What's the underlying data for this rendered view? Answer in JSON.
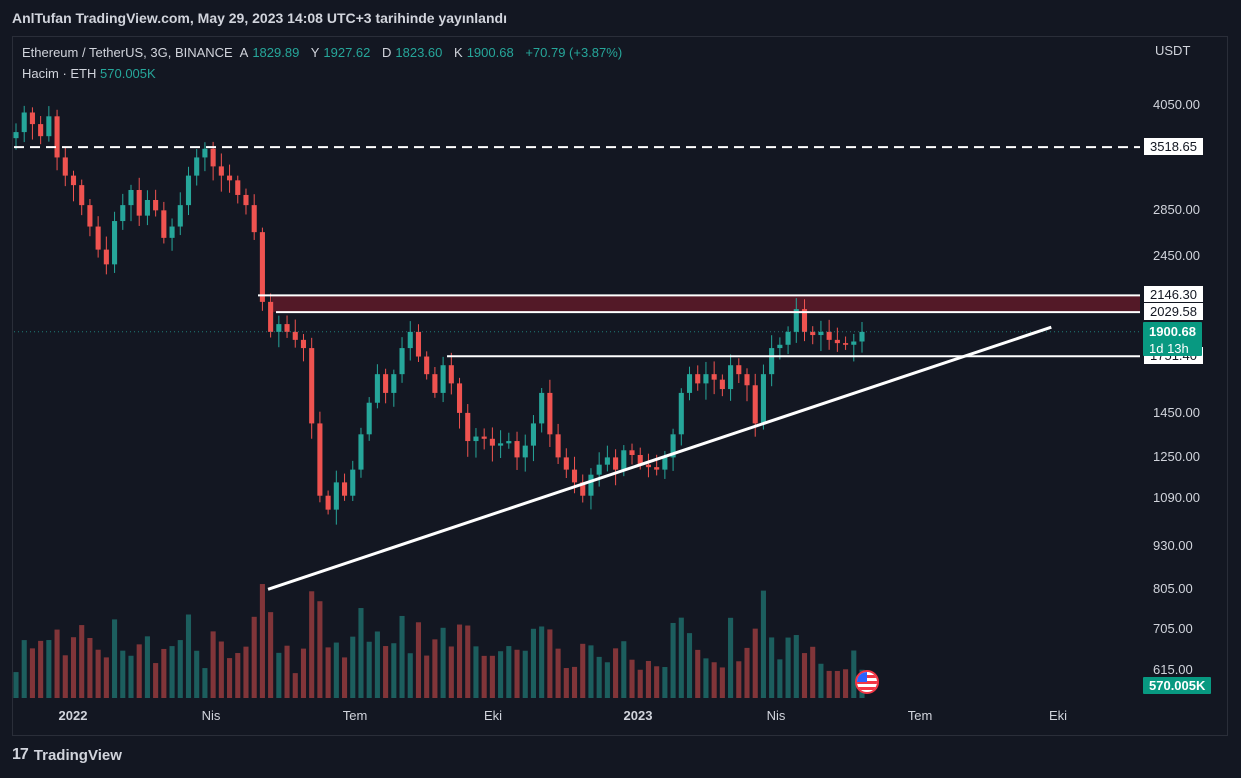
{
  "header": {
    "text": "AnlTufan TradingView.com, May 29, 2023 14:08 UTC+3 tarihinde yayınlandı"
  },
  "legend": {
    "symbol": "Ethereum / TetherUS, 3G, BINANCE",
    "open_label": "A",
    "open": "1829.89",
    "high_label": "Y",
    "high": "1927.62",
    "low_label": "D",
    "low": "1823.60",
    "close_label": "K",
    "close": "1900.68",
    "change": "+70.79 (+3.87%)",
    "volume_label": "Hacim · ETH",
    "volume": "570.005K"
  },
  "footer": {
    "brand": "TradingView",
    "logo": "17"
  },
  "colors": {
    "up": "#26a69a",
    "down": "#ef5350",
    "background": "#131722",
    "zone": "#5b1a28"
  },
  "chart_data": {
    "type": "candlestick",
    "y_axis": {
      "unit": "USDT",
      "scale": "log",
      "ticks": [
        "4050.00",
        "2850.00",
        "2450.00",
        "1450.00",
        "1250.00",
        "1090.00",
        "930.00",
        "805.00",
        "705.00",
        "615.00"
      ]
    },
    "x_axis": {
      "ticks": [
        "2022",
        "Nis",
        "Tem",
        "Eki",
        "2023",
        "Nis",
        "Tem",
        "Eki"
      ]
    },
    "price_lines": [
      {
        "value": "3518.65",
        "style": "dashed"
      },
      {
        "value": "2146.30",
        "style": "solid"
      },
      {
        "value": "2029.58",
        "style": "solid"
      },
      {
        "value": "1751.40",
        "style": "solid"
      }
    ],
    "current_price": {
      "value": "1900.68",
      "countdown": "1d 13h"
    },
    "current_volume": "570.005K",
    "resistance_zone": [
      2029.58,
      2146.3
    ],
    "trendline": {
      "from": {
        "date": "2022-05-07",
        "price": 805
      },
      "to": {
        "date": "2023-09-25",
        "price": 1930
      }
    },
    "closes": [
      3700,
      3950,
      3800,
      3650,
      3900,
      3400,
      3200,
      3100,
      2900,
      2700,
      2500,
      2380,
      2750,
      2900,
      3050,
      2800,
      2950,
      2850,
      2600,
      2700,
      2900,
      3200,
      3400,
      3500,
      3300,
      3200,
      3150,
      3000,
      2900,
      2650,
      2100,
      1900,
      1950,
      1900,
      1850,
      1800,
      1400,
      1100,
      1050,
      1150,
      1100,
      1200,
      1350,
      1500,
      1650,
      1550,
      1650,
      1800,
      1900,
      1750,
      1650,
      1550,
      1700,
      1600,
      1450,
      1320,
      1340,
      1330,
      1300,
      1310,
      1320,
      1250,
      1300,
      1400,
      1550,
      1350,
      1250,
      1200,
      1150,
      1100,
      1180,
      1220,
      1250,
      1200,
      1280,
      1260,
      1220,
      1210,
      1200,
      1250,
      1350,
      1550,
      1650,
      1600,
      1650,
      1620,
      1570,
      1700,
      1650,
      1590,
      1400,
      1650,
      1800,
      1820,
      1900,
      2050,
      1900,
      1880,
      1900,
      1850,
      1830,
      1820,
      1840,
      1900
    ]
  }
}
